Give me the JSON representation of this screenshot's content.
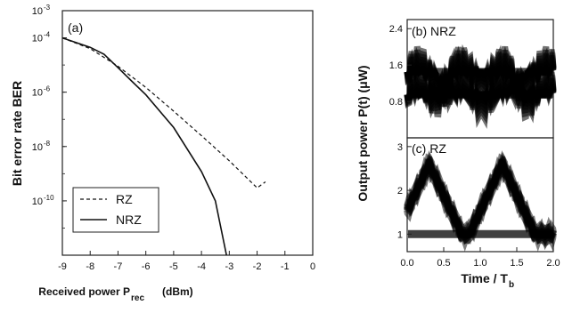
{
  "chart_data": [
    {
      "panel": "(a)",
      "type": "line",
      "xlabel": "Received power  P",
      "xlabel_sub": "rec",
      "xlabel_unit": "(dBm)",
      "ylabel": "Bit error rate  BER",
      "x_ticks": [
        "-9",
        "-8",
        "-7",
        "-6",
        "-5",
        "-4",
        "-3",
        "-2",
        "-1",
        "0"
      ],
      "xlim": [
        -9,
        0
      ],
      "y_scale": "log",
      "ylim": [
        1e-12,
        0.001
      ],
      "y_ticks": [
        {
          "base": "10",
          "exp": "-3"
        },
        {
          "base": "10",
          "exp": "-4"
        },
        {
          "base": "10",
          "exp": "-6"
        },
        {
          "base": "10",
          "exp": "-8"
        },
        {
          "base": "10",
          "exp": "-10"
        }
      ],
      "legend_position": "bottom-left",
      "series": [
        {
          "name": "RZ",
          "style": "dashed",
          "x": [
            -9,
            -8,
            -7,
            -6,
            -5,
            -4,
            -3,
            -2,
            -1.7
          ],
          "y": [
            0.0001,
            4e-05,
            9e-06,
            1.5e-06,
            2e-07,
            2.5e-08,
            3e-09,
            3e-10,
            5e-10
          ]
        },
        {
          "name": "NRZ",
          "style": "solid",
          "x": [
            -9,
            -8,
            -7.5,
            -7,
            -6.5,
            -6,
            -5,
            -4,
            -3.5,
            -3.1
          ],
          "y": [
            0.0001,
            4.5e-05,
            2.5e-05,
            8e-06,
            2.5e-06,
            8e-07,
            5e-08,
            1.2e-09,
            1e-10,
            1e-12
          ]
        }
      ]
    },
    {
      "panel": "(b) NRZ",
      "type": "line",
      "ylabel": "Output power P(t)  (μW)",
      "y_ticks": [
        "0.8",
        "1.6",
        "2.4"
      ],
      "ylim": [
        0.0,
        2.6
      ],
      "xlim": [
        0.0,
        2.0
      ],
      "description_levels": {
        "upper_rail": 1.45,
        "lower_rail": 0.95
      }
    },
    {
      "panel": "(c) RZ",
      "type": "line",
      "y_ticks": [
        "1",
        "2",
        "3"
      ],
      "ylim": [
        0.6,
        3.2
      ],
      "xlim": [
        0.0,
        2.0
      ],
      "x_ticks": [
        "0.0",
        "0.5",
        "1.0",
        "1.5",
        "2.0"
      ],
      "xlabel": "Time / T",
      "xlabel_sub": "b",
      "peaks_at": [
        0.3,
        1.3
      ],
      "peak_level": 2.6,
      "base_level": 1.0
    }
  ]
}
